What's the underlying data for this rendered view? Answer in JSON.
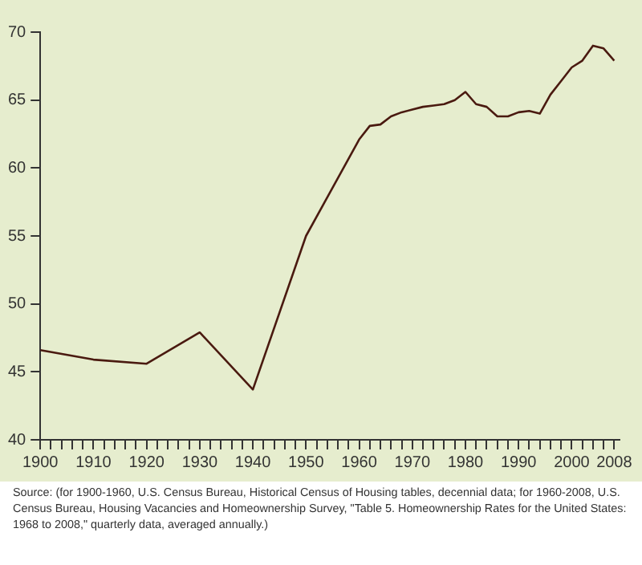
{
  "chart_data": {
    "type": "line",
    "x": [
      1900,
      1910,
      1920,
      1930,
      1940,
      1950,
      1960,
      1962,
      1964,
      1966,
      1968,
      1970,
      1972,
      1974,
      1976,
      1978,
      1980,
      1982,
      1984,
      1986,
      1988,
      1990,
      1992,
      1994,
      1996,
      1998,
      2000,
      2002,
      2004,
      2006,
      2008
    ],
    "series": [
      {
        "color": "#4a1a10",
        "values": [
          46.6,
          45.9,
          45.6,
          47.9,
          43.7,
          55.0,
          62.1,
          63.1,
          63.2,
          63.8,
          64.1,
          64.3,
          64.5,
          64.6,
          64.7,
          65.0,
          65.6,
          64.7,
          64.5,
          63.8,
          63.8,
          64.1,
          64.2,
          64.0,
          65.4,
          66.4,
          67.4,
          67.9,
          69.0,
          68.8,
          67.9
        ]
      }
    ],
    "xlim": [
      1900,
      2009
    ],
    "xticks": [
      1900,
      {
        "value": 1902,
        "label": null
      },
      {
        "value": 1904,
        "label": null
      },
      {
        "value": 1906,
        "label": null
      },
      {
        "value": 1908,
        "label": null
      },
      1910,
      {
        "value": 1912,
        "label": null
      },
      {
        "value": 1914,
        "label": null
      },
      {
        "value": 1916,
        "label": null
      },
      {
        "value": 1918,
        "label": null
      },
      1920,
      {
        "value": 1922,
        "label": null
      },
      {
        "value": 1924,
        "label": null
      },
      {
        "value": 1926,
        "label": null
      },
      {
        "value": 1928,
        "label": null
      },
      1930,
      {
        "value": 1932,
        "label": null
      },
      {
        "value": 1934,
        "label": null
      },
      {
        "value": 1936,
        "label": null
      },
      {
        "value": 1938,
        "label": null
      },
      1940,
      {
        "value": 1942,
        "label": null
      },
      {
        "value": 1944,
        "label": null
      },
      {
        "value": 1946,
        "label": null
      },
      {
        "value": 1948,
        "label": null
      },
      1950,
      {
        "value": 1952,
        "label": null
      },
      {
        "value": 1954,
        "label": null
      },
      {
        "value": 1956,
        "label": null
      },
      {
        "value": 1958,
        "label": null
      },
      1960,
      {
        "value": 1962,
        "label": null
      },
      {
        "value": 1964,
        "label": null
      },
      {
        "value": 1966,
        "label": null
      },
      {
        "value": 1968,
        "label": null
      },
      1970,
      {
        "value": 1972,
        "label": null
      },
      {
        "value": 1974,
        "label": null
      },
      {
        "value": 1976,
        "label": null
      },
      {
        "value": 1978,
        "label": null
      },
      1980,
      {
        "value": 1982,
        "label": null
      },
      {
        "value": 1984,
        "label": null
      },
      {
        "value": 1986,
        "label": null
      },
      {
        "value": 1988,
        "label": null
      },
      1990,
      {
        "value": 1992,
        "label": null
      },
      {
        "value": 1994,
        "label": null
      },
      {
        "value": 1996,
        "label": null
      },
      {
        "value": 1998,
        "label": null
      },
      2000,
      {
        "value": 2002,
        "label": null
      },
      {
        "value": 2004,
        "label": null
      },
      {
        "value": 2006,
        "label": null
      },
      2008
    ],
    "ylim": [
      40,
      70
    ],
    "yticks": [
      40,
      45,
      50,
      55,
      60,
      65,
      70
    ],
    "grid": false,
    "legend": false,
    "marker": "none",
    "line_style": "solid",
    "annotations": [
      "Source: (for 1900-1960, U.S. Census Bureau, Historical Census of Housing tables, decennial data; for 1960-2008, U.S. Census Bureau, Housing Vacancies and Homeownership Survey, \"Table 5. Homeownership Rates for the United States: 1968 to 2008,\" quarterly data, averaged annually.)"
    ]
  }
}
